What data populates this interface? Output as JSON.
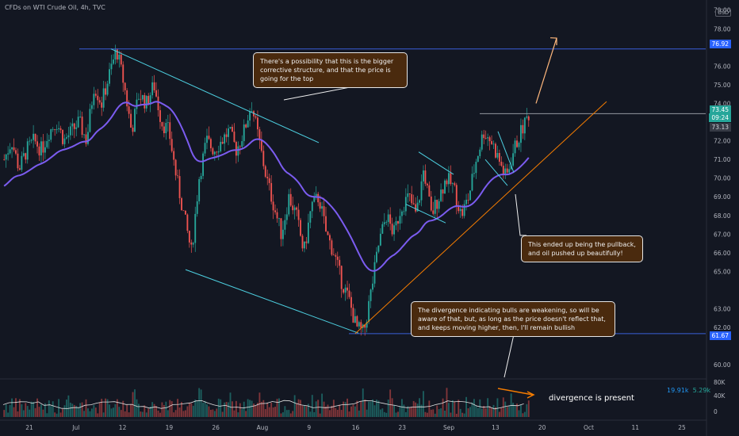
{
  "header": {
    "title": "CFDs on WTI Crude Oil, 4h, TVC"
  },
  "currency_badge": "USD",
  "colors": {
    "background": "#131722",
    "up": "#26a69a",
    "down": "#ef5350",
    "ma": "#7b5cf0",
    "channel": "#4dd0e1",
    "trend": "#f57c00",
    "horizontal": "#3a5fd9",
    "callout_bg": "#4a2a0e"
  },
  "price_boxes": {
    "top_level": "76.92",
    "current": "73.45",
    "countdown": "09:24",
    "prev_close": "73.13",
    "bottom_level": "61.67"
  },
  "annotations": [
    {
      "id": "corrective",
      "text": "There's a possibility that this is the bigger corrective structure, and that the price is going for the top"
    },
    {
      "id": "pullback",
      "text": "This ended up being the pullback, and oil pushed up beautifully!"
    },
    {
      "id": "divergence",
      "text": "The divergence indicating bulls are weakening, so will be aware of that, but, as long as the price doesn't reflect that, and keeps moving higher, then, I'll remain bullish"
    }
  ],
  "volume_panel": {
    "label": "divergence is present",
    "value_a": "19.91k",
    "value_b": "5.29k",
    "axis_ticks": [
      "80K",
      "40K",
      "0"
    ]
  },
  "chart_data": {
    "type": "line",
    "instrument": "CFDs on WTI Crude Oil",
    "timeframe": "4h",
    "y_axis": {
      "ticks": [
        79.0,
        78.0,
        76.0,
        75.0,
        74.0,
        72.0,
        71.0,
        70.0,
        69.0,
        68.0,
        67.0,
        66.0,
        65.0,
        63.0,
        62.0,
        60.0
      ],
      "ylim": [
        59.5,
        79.2
      ]
    },
    "x_axis": {
      "ticks": [
        "21",
        "Jul",
        "12",
        "19",
        "26",
        "Aug",
        "9",
        "16",
        "23",
        "Sep",
        "13",
        "20",
        "Oct",
        "11",
        "25"
      ]
    },
    "series": [
      {
        "name": "",
        "values": [
          71.0,
          72.0,
          70.5,
          71.5,
          72.0,
          71.5,
          72.5,
          73.0,
          72.0,
          72.5,
          73.0,
          72.0,
          75.0,
          74.0,
          75.5,
          76.9,
          75.0,
          72.5,
          74.5,
          74.0,
          75.0,
          73.0,
          72.5,
          70.0,
          68.0,
          66.0,
          70.0,
          72.0,
          71.5,
          72.0,
          72.5,
          71.5,
          72.5,
          74.0,
          72.0,
          70.0,
          68.5,
          67.0,
          69.0,
          68.0,
          66.0,
          68.5,
          69.0,
          67.0,
          66.0,
          64.5,
          63.5,
          62.0,
          61.7,
          64.0,
          66.5,
          68.0,
          67.0,
          68.5,
          69.0,
          68.0,
          70.5,
          68.0,
          69.0,
          70.0,
          69.5,
          68.0,
          69.0,
          71.0,
          72.5,
          72.0,
          71.0,
          70.0,
          71.5,
          72.5,
          73.45
        ]
      }
    ]
  }
}
